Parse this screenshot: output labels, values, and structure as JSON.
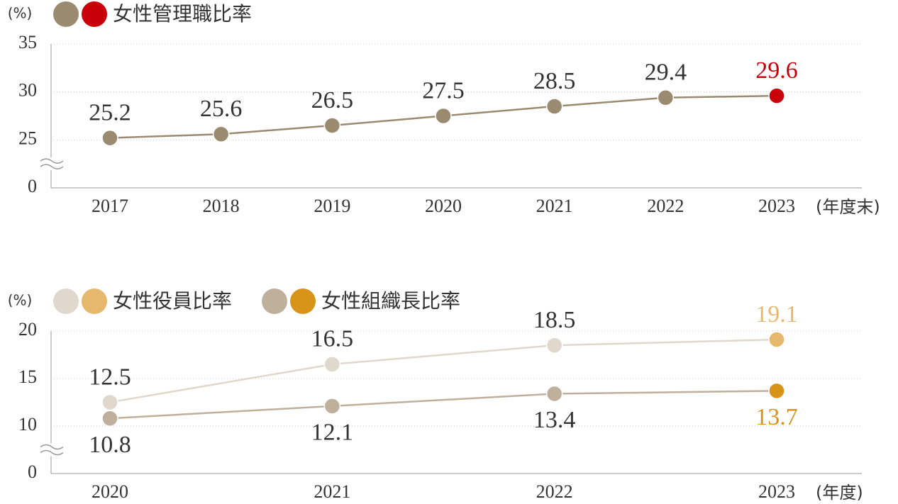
{
  "chart_data": [
    {
      "type": "line",
      "y_unit": "(%)",
      "x_unit": "(年度末)",
      "categories": [
        "2017",
        "2018",
        "2019",
        "2020",
        "2021",
        "2022",
        "2023"
      ],
      "series": [
        {
          "name": "女性管理職比率",
          "color": "#9a8a70",
          "highlight_color": "#c8000a",
          "values": [
            25.2,
            25.6,
            26.5,
            27.5,
            28.5,
            29.4,
            29.6
          ]
        }
      ],
      "ylim": [
        0,
        35
      ],
      "yticks": [
        0,
        25,
        30,
        35
      ],
      "y_break": [
        0,
        20
      ],
      "grid": true
    },
    {
      "type": "line",
      "y_unit": "(%)",
      "x_unit": "(年度)",
      "categories": [
        "2020",
        "2021",
        "2022",
        "2023"
      ],
      "series": [
        {
          "name": "女性役員比率",
          "color": "#e0d8cc",
          "highlight_color": "#e6b86e",
          "values": [
            12.5,
            16.5,
            18.5,
            19.1
          ]
        },
        {
          "name": "女性組織長比率",
          "color": "#bfb09c",
          "highlight_color": "#d89418",
          "values": [
            10.8,
            12.1,
            13.4,
            13.7
          ]
        }
      ],
      "ylim": [
        0,
        20
      ],
      "yticks": [
        0,
        10,
        15,
        20
      ],
      "y_break": [
        0,
        5
      ],
      "grid": true
    }
  ]
}
